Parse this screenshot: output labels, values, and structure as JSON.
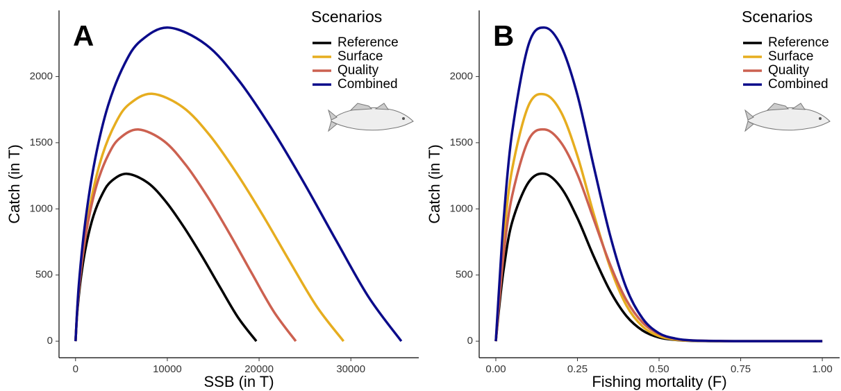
{
  "chart_data": [
    {
      "type": "line",
      "panel_label": "A",
      "x_label": "SSB (in T)",
      "y_label": "Catch (in T)",
      "legend_title": "Scenarios",
      "legend": "top-right",
      "xlim": [
        -1800,
        37400
      ],
      "xticks": [
        0,
        10000,
        20000,
        30000
      ],
      "ylim": [
        -125,
        2500
      ],
      "yticks": [
        0,
        500,
        1000,
        1500,
        2000
      ],
      "series": [
        {
          "name": "Reference",
          "color": "#000000",
          "x": [
            0,
            197,
            591,
            1182,
            1970,
            2955,
            3940,
            5615,
            7880,
            9850,
            11820,
            13790,
            15760,
            17730,
            19700
          ],
          "values": [
            0,
            226,
            483,
            734,
            951,
            1117,
            1212,
            1265,
            1197,
            1054,
            861,
            641,
            406,
            177,
            0
          ]
        },
        {
          "name": "Surface",
          "color": "#E6AD1F",
          "x": [
            0,
            292,
            876,
            1752,
            2920,
            4380,
            5840,
            8322,
            11680,
            14600,
            17520,
            20440,
            23360,
            26280,
            29200
          ],
          "values": [
            0,
            335,
            714,
            1085,
            1406,
            1651,
            1791,
            1870,
            1769,
            1558,
            1273,
            948,
            600,
            262,
            0
          ]
        },
        {
          "name": "Quality",
          "color": "#CC6150",
          "x": [
            0,
            240,
            720,
            1440,
            2400,
            3600,
            4800,
            6840,
            9600,
            12000,
            14400,
            16800,
            19200,
            21600,
            24000
          ],
          "values": [
            0,
            286,
            611,
            928,
            1203,
            1413,
            1533,
            1600,
            1514,
            1333,
            1090,
            811,
            514,
            224,
            0
          ]
        },
        {
          "name": "Combined",
          "color": "#0B0B8A",
          "x": [
            0,
            355,
            1065,
            2130,
            3550,
            5325,
            7100,
            10118,
            14200,
            17750,
            21300,
            24850,
            28400,
            31950,
            35500
          ],
          "values": [
            0,
            424,
            905,
            1375,
            1782,
            2093,
            2270,
            2370,
            2242,
            1974,
            1614,
            1202,
            761,
            332,
            0
          ]
        }
      ]
    },
    {
      "type": "line",
      "panel_label": "B",
      "x_label": "Fishing mortality (F)",
      "y_label": "Catch (in T)",
      "legend_title": "Scenarios",
      "legend": "top-right",
      "xlim": [
        -0.051,
        1.053
      ],
      "xticks": [
        {
          "value": 0,
          "label": "0.00"
        },
        0.25,
        {
          "value": 0.5,
          "label": "0.50"
        },
        0.75,
        {
          "value": 1,
          "label": "1.00"
        }
      ],
      "ylim": [
        -125,
        2500
      ],
      "yticks": [
        0,
        500,
        1000,
        1500,
        2000
      ],
      "series": [
        {
          "name": "Reference",
          "color": "#000000",
          "x": [
            0,
            0.01,
            0.025,
            0.05,
            0.1,
            0.15,
            0.2,
            0.25,
            0.3,
            0.35,
            0.4,
            0.45,
            0.5,
            0.55,
            0.6,
            0.7,
            0.8,
            1
          ],
          "values": [
            0,
            250,
            560,
            900,
            1200,
            1265,
            1160,
            930,
            640,
            380,
            190,
            80,
            28,
            10,
            3,
            0,
            0,
            0
          ]
        },
        {
          "name": "Surface",
          "color": "#E6AD1F",
          "x": [
            0,
            0.01,
            0.025,
            0.05,
            0.1,
            0.15,
            0.2,
            0.25,
            0.3,
            0.35,
            0.4,
            0.45,
            0.5,
            0.55,
            0.6,
            0.7,
            0.8,
            1
          ],
          "values": [
            0,
            350,
            800,
            1300,
            1780,
            1865,
            1730,
            1400,
            960,
            560,
            270,
            110,
            38,
            12,
            4,
            0,
            0,
            0
          ]
        },
        {
          "name": "Quality",
          "color": "#CC6150",
          "x": [
            0,
            0.01,
            0.025,
            0.05,
            0.1,
            0.15,
            0.2,
            0.25,
            0.3,
            0.35,
            0.4,
            0.45,
            0.5,
            0.55,
            0.6,
            0.7,
            0.8,
            1
          ],
          "values": [
            0,
            290,
            680,
            1100,
            1520,
            1600,
            1500,
            1260,
            920,
            580,
            310,
            140,
            55,
            18,
            6,
            1,
            0,
            0
          ]
        },
        {
          "name": "Combined",
          "color": "#0B0B8A",
          "x": [
            0,
            0.01,
            0.025,
            0.05,
            0.1,
            0.15,
            0.2,
            0.25,
            0.3,
            0.35,
            0.4,
            0.45,
            0.5,
            0.55,
            0.6,
            0.7,
            0.8,
            1
          ],
          "values": [
            0,
            400,
            950,
            1580,
            2240,
            2370,
            2230,
            1860,
            1320,
            800,
            400,
            170,
            60,
            20,
            6,
            1,
            0,
            0
          ]
        }
      ]
    }
  ]
}
